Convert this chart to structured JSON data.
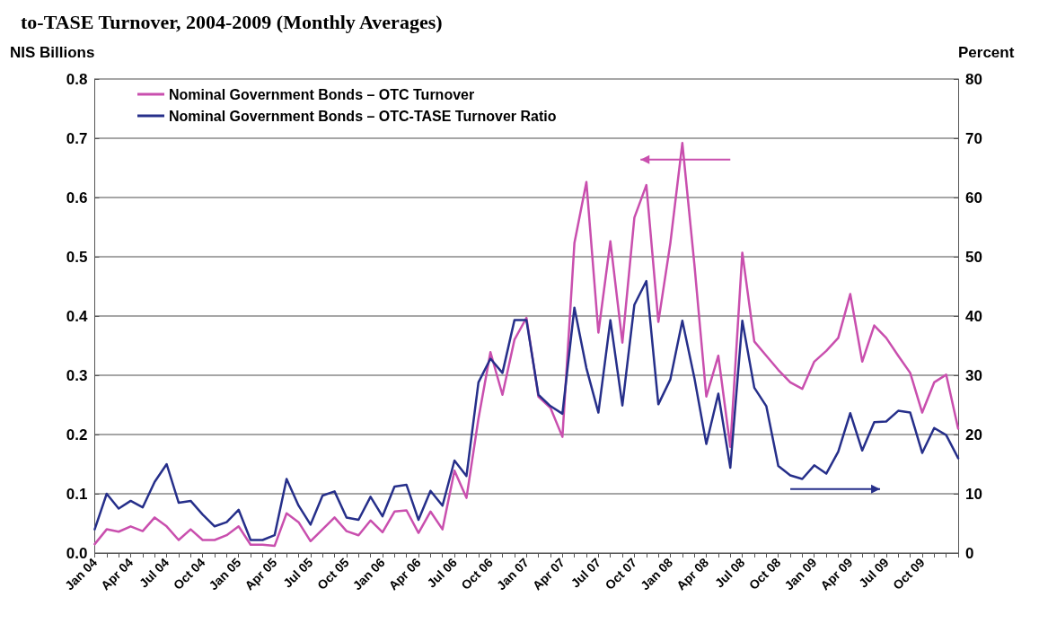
{
  "chart_data": {
    "type": "line",
    "title": "to-TASE Turnover, 2004-2009 (Monthly Averages)",
    "ylabel": "NIS Billions",
    "y2label": "Percent",
    "categories": [
      "Jan 04",
      null,
      null,
      "Apr 04",
      null,
      null,
      "Jul 04",
      null,
      null,
      "Oct 04",
      null,
      null,
      "Jan 05",
      null,
      null,
      "Apr 05",
      null,
      null,
      "Jul 05",
      null,
      null,
      "Oct 05",
      null,
      null,
      "Jan 06",
      null,
      null,
      "Apr 06",
      null,
      null,
      "Jul 06",
      null,
      null,
      "Oct 06",
      null,
      null,
      "Jan 07",
      null,
      null,
      "Apr 07",
      null,
      null,
      "Jul 07",
      null,
      null,
      "Oct 07",
      null,
      null,
      "Jan 08",
      null,
      null,
      "Apr 08",
      null,
      null,
      "Jul 08",
      null,
      null,
      "Oct 08",
      null,
      null,
      "Jan 09",
      null,
      null,
      "Apr 09",
      null,
      null,
      "Jul 09",
      null,
      null,
      "Oct 09",
      null,
      null,
      null
    ],
    "series": [
      {
        "name": "Nominal Government Bonds – OTC Turnover",
        "color": "#c94fae",
        "values": [
          0.015,
          0.04,
          0.036,
          0.045,
          0.037,
          0.06,
          0.045,
          0.022,
          0.04,
          0.022,
          0.022,
          0.03,
          0.045,
          0.014,
          0.014,
          0.012,
          0.067,
          0.052,
          0.02,
          0.04,
          0.06,
          0.037,
          0.03,
          0.055,
          0.035,
          0.07,
          0.072,
          0.034,
          0.07,
          0.04,
          0.139,
          0.093,
          0.227,
          0.339,
          0.267,
          0.36,
          0.397,
          0.264,
          0.245,
          0.196,
          0.523,
          0.626,
          0.372,
          0.526,
          0.355,
          0.566,
          0.621,
          0.39,
          0.523,
          0.692,
          0.488,
          0.264,
          0.333,
          0.179,
          0.507,
          0.357,
          0.333,
          0.309,
          0.288,
          0.277,
          0.323,
          0.341,
          0.363,
          0.437,
          0.323,
          0.384,
          0.363,
          0.333,
          0.304,
          0.237,
          0.288,
          0.301,
          0.21
        ]
      },
      {
        "name": "Nominal Government Bonds – OTC-TASE Turnover Ratio",
        "color": "#262f8a",
        "axis": "y2",
        "values": [
          4,
          10,
          7.5,
          8.8,
          7.7,
          12,
          15,
          8.5,
          8.8,
          6.5,
          4.5,
          5.2,
          7.3,
          2.2,
          2.2,
          3,
          12.5,
          8,
          4.8,
          9.7,
          10.4,
          6,
          5.6,
          9.5,
          6.2,
          11.2,
          11.5,
          5.6,
          10.5,
          8,
          15.6,
          13,
          28.8,
          32.8,
          30.4,
          39.3,
          39.3,
          26.7,
          24.8,
          23.5,
          41.4,
          31.2,
          23.7,
          39.3,
          24.9,
          41.9,
          45.9,
          25.1,
          29.3,
          39.2,
          29.6,
          18.4,
          26.9,
          14.4,
          39.2,
          27.9,
          24.8,
          14.7,
          13.1,
          12.5,
          14.8,
          13.4,
          17.1,
          23.6,
          17.3,
          22.1,
          22.2,
          24,
          23.7,
          16.9,
          21.1,
          19.9,
          16
        ]
      }
    ],
    "ylim": [
      0,
      0.8
    ],
    "yticks": [
      {
        "value": 0,
        "label": "0.0"
      },
      0.1,
      0.2,
      0.3,
      0.4,
      0.5,
      0.6,
      0.7,
      0.8
    ],
    "y2lim": [
      0,
      80
    ],
    "y2ticks": [
      0,
      10,
      20,
      30,
      40,
      50,
      60,
      70,
      80
    ],
    "grid": "y",
    "legend": "top left",
    "marker": "none",
    "line_style": "solid"
  }
}
